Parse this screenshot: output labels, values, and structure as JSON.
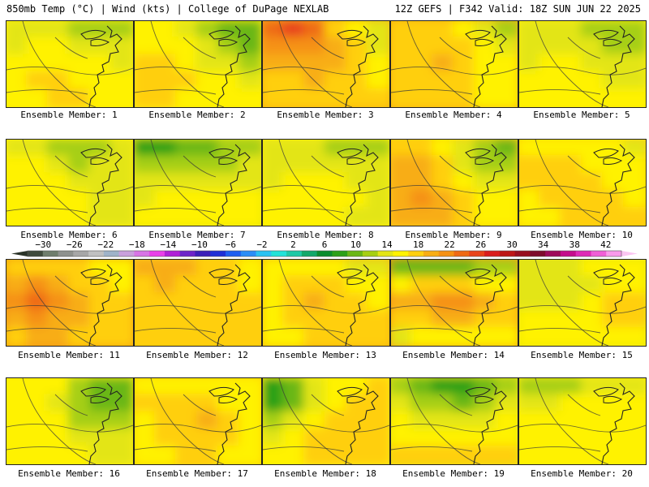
{
  "header": {
    "left": "850mb Temp (°C) | Wind (kts) | College of DuPage NEXLAB",
    "right": "12Z GEFS | F342 Valid: 18Z SUN JUN 22 2025"
  },
  "legend": {
    "ticks": [
      "−30",
      "−26",
      "−22",
      "−18",
      "−14",
      "−10",
      "−6",
      "−2",
      "2",
      "6",
      "10",
      "14",
      "18",
      "22",
      "26",
      "30",
      "34",
      "38",
      "42"
    ],
    "min": -32,
    "max": 44,
    "step": 2,
    "colors": [
      "#3f4a3c",
      "#6f7d6d",
      "#8e918e",
      "#a7a7a7",
      "#c0c0c0",
      "#9fb3c9",
      "#c9a0dc",
      "#d874e6",
      "#e83fe8",
      "#b021d6",
      "#6d24c9",
      "#3b1fb8",
      "#1f2fd6",
      "#1f5ef0",
      "#2b8df7",
      "#2ac2f2",
      "#21e2d8",
      "#1ec9a6",
      "#11a86a",
      "#0a8c2e",
      "#2ca019",
      "#6ab716",
      "#a6cf12",
      "#e3e516",
      "#fff200",
      "#ffcf0f",
      "#f8ad12",
      "#f59112",
      "#ef6a14",
      "#e8431a",
      "#da1d1d",
      "#bd1616",
      "#980f1f",
      "#7d0b2c",
      "#9e0a5a",
      "#c40c8b",
      "#de29b5",
      "#f05fd6",
      "#f99aea"
    ]
  },
  "members": [
    {
      "label": "Ensemble Member: 1",
      "temps": [
        [
          14,
          14,
          15,
          13,
          12,
          13
        ],
        [
          15,
          16,
          16,
          15,
          14,
          14
        ],
        [
          16,
          17,
          17,
          16,
          16,
          15
        ],
        [
          17,
          18,
          18,
          17,
          17,
          16
        ],
        [
          17,
          17,
          18,
          18,
          17,
          17
        ]
      ]
    },
    {
      "label": "Ensemble Member: 2",
      "temps": [
        [
          16,
          16,
          14,
          12,
          11,
          10
        ],
        [
          17,
          17,
          16,
          14,
          12,
          11
        ],
        [
          18,
          18,
          17,
          15,
          14,
          13
        ],
        [
          18,
          18,
          18,
          16,
          16,
          15
        ],
        [
          18,
          18,
          17,
          17,
          16,
          16
        ]
      ]
    },
    {
      "label": "Ensemble Member: 3",
      "temps": [
        [
          24,
          26,
          24,
          18,
          16,
          14
        ],
        [
          22,
          23,
          22,
          20,
          18,
          15
        ],
        [
          20,
          21,
          21,
          20,
          18,
          16
        ],
        [
          18,
          19,
          20,
          19,
          18,
          17
        ],
        [
          18,
          18,
          19,
          19,
          18,
          18
        ]
      ]
    },
    {
      "label": "Ensemble Member: 4",
      "temps": [
        [
          18,
          18,
          18,
          17,
          14,
          13
        ],
        [
          19,
          19,
          19,
          18,
          16,
          15
        ],
        [
          19,
          19,
          20,
          19,
          17,
          16
        ],
        [
          18,
          18,
          19,
          18,
          17,
          16
        ],
        [
          18,
          18,
          18,
          18,
          17,
          17
        ]
      ]
    },
    {
      "label": "Ensemble Member: 5",
      "temps": [
        [
          15,
          15,
          14,
          13,
          12,
          13
        ],
        [
          15,
          15,
          15,
          14,
          12,
          13
        ],
        [
          15,
          16,
          16,
          15,
          14,
          14
        ],
        [
          16,
          16,
          16,
          16,
          15,
          15
        ],
        [
          16,
          16,
          16,
          16,
          16,
          16
        ]
      ]
    },
    {
      "label": "Ensemble Member: 6",
      "temps": [
        [
          15,
          14,
          13,
          12,
          13,
          14
        ],
        [
          16,
          16,
          15,
          13,
          14,
          15
        ],
        [
          17,
          17,
          16,
          15,
          15,
          15
        ],
        [
          17,
          17,
          16,
          16,
          15,
          15
        ],
        [
          17,
          17,
          17,
          16,
          15,
          15
        ]
      ]
    },
    {
      "label": "Ensemble Member: 7",
      "temps": [
        [
          9,
          9,
          10,
          11,
          12,
          13
        ],
        [
          12,
          12,
          12,
          13,
          13,
          14
        ],
        [
          14,
          14,
          15,
          15,
          15,
          15
        ],
        [
          15,
          16,
          16,
          16,
          16,
          16
        ],
        [
          16,
          16,
          17,
          17,
          16,
          16
        ]
      ]
    },
    {
      "label": "Ensemble Member: 8",
      "temps": [
        [
          15,
          14,
          14,
          13,
          12,
          12
        ],
        [
          15,
          15,
          15,
          14,
          14,
          14
        ],
        [
          15,
          16,
          16,
          16,
          15,
          15
        ],
        [
          16,
          16,
          16,
          16,
          16,
          15
        ],
        [
          16,
          16,
          16,
          16,
          15,
          15
        ]
      ]
    },
    {
      "label": "Ensemble Member: 9",
      "temps": [
        [
          19,
          19,
          17,
          14,
          12,
          10
        ],
        [
          20,
          20,
          18,
          15,
          13,
          12
        ],
        [
          21,
          21,
          19,
          16,
          15,
          14
        ],
        [
          21,
          22,
          20,
          18,
          16,
          16
        ],
        [
          20,
          21,
          20,
          18,
          17,
          17
        ]
      ]
    },
    {
      "label": "Ensemble Member: 10",
      "temps": [
        [
          17,
          17,
          17,
          16,
          16,
          15
        ],
        [
          18,
          18,
          18,
          17,
          17,
          16
        ],
        [
          18,
          18,
          18,
          18,
          17,
          17
        ],
        [
          17,
          18,
          18,
          18,
          18,
          17
        ],
        [
          17,
          17,
          18,
          18,
          18,
          18
        ]
      ]
    },
    {
      "label": "Ensemble Member: 11",
      "temps": [
        [
          18,
          19,
          19,
          18,
          17,
          17
        ],
        [
          21,
          22,
          20,
          19,
          18,
          17
        ],
        [
          22,
          24,
          22,
          20,
          19,
          18
        ],
        [
          21,
          23,
          21,
          20,
          19,
          19
        ],
        [
          19,
          20,
          20,
          19,
          19,
          19
        ]
      ]
    },
    {
      "label": "Ensemble Member: 12",
      "temps": [
        [
          20,
          21,
          20,
          19,
          18,
          17
        ],
        [
          19,
          20,
          19,
          18,
          18,
          17
        ],
        [
          18,
          19,
          19,
          18,
          18,
          18
        ],
        [
          18,
          18,
          19,
          19,
          18,
          18
        ],
        [
          18,
          18,
          18,
          18,
          18,
          18
        ]
      ]
    },
    {
      "label": "Ensemble Member: 13",
      "temps": [
        [
          16,
          16,
          17,
          16,
          15,
          15
        ],
        [
          17,
          18,
          19,
          18,
          17,
          16
        ],
        [
          17,
          19,
          20,
          19,
          18,
          17
        ],
        [
          17,
          18,
          19,
          19,
          18,
          18
        ],
        [
          17,
          17,
          18,
          18,
          18,
          18
        ]
      ]
    },
    {
      "label": "Ensemble Member: 14",
      "temps": [
        [
          11,
          11,
          11,
          11,
          12,
          13
        ],
        [
          17,
          18,
          19,
          18,
          17,
          16
        ],
        [
          20,
          21,
          22,
          22,
          20,
          18
        ],
        [
          18,
          19,
          20,
          20,
          19,
          18
        ],
        [
          15,
          16,
          16,
          17,
          17,
          17
        ]
      ]
    },
    {
      "label": "Ensemble Member: 15",
      "temps": [
        [
          15,
          15,
          15,
          16,
          16,
          16
        ],
        [
          15,
          14,
          14,
          15,
          16,
          17
        ],
        [
          15,
          15,
          15,
          16,
          18,
          18
        ],
        [
          16,
          16,
          16,
          17,
          18,
          18
        ],
        [
          16,
          16,
          17,
          17,
          17,
          17
        ]
      ]
    },
    {
      "label": "Ensemble Member: 16",
      "temps": [
        [
          17,
          17,
          16,
          13,
          11,
          10
        ],
        [
          17,
          17,
          15,
          12,
          10,
          10
        ],
        [
          17,
          17,
          16,
          13,
          12,
          12
        ],
        [
          17,
          17,
          16,
          15,
          14,
          14
        ],
        [
          17,
          17,
          17,
          16,
          15,
          15
        ]
      ]
    },
    {
      "label": "Ensemble Member: 17",
      "temps": [
        [
          17,
          17,
          17,
          16,
          16,
          16
        ],
        [
          18,
          18,
          18,
          18,
          17,
          17
        ],
        [
          17,
          18,
          19,
          20,
          18,
          17
        ],
        [
          17,
          18,
          19,
          19,
          18,
          17
        ],
        [
          17,
          17,
          18,
          18,
          17,
          17
        ]
      ]
    },
    {
      "label": "Ensemble Member: 18",
      "temps": [
        [
          8,
          10,
          14,
          16,
          17,
          18
        ],
        [
          9,
          11,
          15,
          17,
          18,
          18
        ],
        [
          12,
          14,
          17,
          18,
          18,
          19
        ],
        [
          15,
          16,
          18,
          18,
          19,
          19
        ],
        [
          17,
          17,
          18,
          19,
          19,
          19
        ]
      ]
    },
    {
      "label": "Ensemble Member: 19",
      "temps": [
        [
          13,
          11,
          9,
          9,
          10,
          12
        ],
        [
          14,
          13,
          12,
          11,
          12,
          14
        ],
        [
          16,
          15,
          14,
          14,
          15,
          16
        ],
        [
          17,
          17,
          16,
          16,
          17,
          17
        ],
        [
          18,
          18,
          18,
          18,
          18,
          18
        ]
      ]
    },
    {
      "label": "Ensemble Member: 20",
      "temps": [
        [
          13,
          13,
          13,
          14,
          14,
          15
        ],
        [
          15,
          15,
          16,
          16,
          16,
          16
        ],
        [
          16,
          16,
          17,
          17,
          17,
          17
        ],
        [
          17,
          17,
          17,
          17,
          17,
          17
        ],
        [
          17,
          17,
          17,
          17,
          17,
          17
        ]
      ]
    }
  ]
}
